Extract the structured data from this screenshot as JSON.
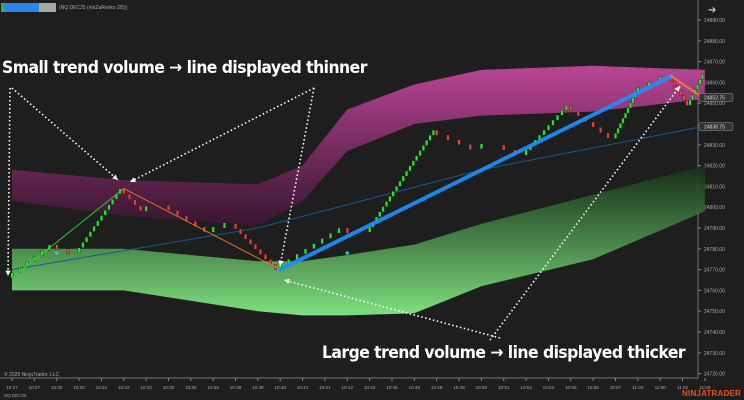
{
  "header": {
    "primary_button": "",
    "secondary_button": "",
    "title": "(NQ DEC25 (ninZaRenko 2/5))"
  },
  "annotations": {
    "top": "Small trend volume → line displayed thinner",
    "bottom": "Large trend volume → line displayed thicker"
  },
  "footer": {
    "copyright": "© 2025 NinjaTrader, LLC",
    "symbol": "NQ DEC25",
    "logo": "NINJATRADER"
  },
  "colors": {
    "up": "#2ee02e",
    "down": "#e8403a",
    "trend_thick": "#1e90ff",
    "trend_thin": "#f07a3a",
    "upper_band": "#c2479c",
    "lower_band": "#7ee07e",
    "ema": "#1c5a8a",
    "logo": "#e8541c"
  },
  "icons": {
    "nav": "arrow-right-icon"
  },
  "chart_data": {
    "type": "renko",
    "price_axis": {
      "ticks": [
        24890,
        24880,
        24870,
        24860,
        24850,
        24830,
        24820,
        24810,
        24800,
        24790,
        24780,
        24770,
        24760,
        24750,
        24740,
        24730,
        24720
      ],
      "tags": [
        "24852.75",
        "24838.75"
      ]
    },
    "time_axis": [
      "10:27",
      "10:27",
      "10:29",
      "10:30",
      "10:31",
      "10:32",
      "10:33",
      "10:35",
      "10:35",
      "10:36",
      "10:38",
      "10:39",
      "10:40",
      "10:41",
      "10:41",
      "10:42",
      "10:44",
      "10:45",
      "10:46",
      "10:48",
      "10:48",
      "10:50",
      "10:51",
      "10:53",
      "10:53",
      "10:55",
      "10:56",
      "10:57",
      "11:00",
      "11:00",
      "11:02",
      "11:05"
    ],
    "brick_size": 2.5,
    "price_path": [
      {
        "t": "10:27",
        "p": 24766
      },
      {
        "t": "10:29",
        "p": 24782
      },
      {
        "t": "10:30",
        "p": 24778
      },
      {
        "t": "10:32",
        "p": 24809
      },
      {
        "t": "10:33",
        "p": 24798
      },
      {
        "t": "10:35",
        "p": 24801
      },
      {
        "t": "10:36",
        "p": 24788
      },
      {
        "t": "10:38",
        "p": 24792
      },
      {
        "t": "10:40",
        "p": 24770
      },
      {
        "t": "10:42",
        "p": 24790
      },
      {
        "t": "10:44",
        "p": 24788
      },
      {
        "t": "10:48",
        "p": 24837
      },
      {
        "t": "10:50",
        "p": 24828
      },
      {
        "t": "10:51",
        "p": 24830
      },
      {
        "t": "10:53",
        "p": 24825
      },
      {
        "t": "10:55",
        "p": 24849
      },
      {
        "t": "10:57",
        "p": 24833
      },
      {
        "t": "11:00",
        "p": 24855
      },
      {
        "t": "11:01",
        "p": 24863
      },
      {
        "t": "11:03",
        "p": 24849
      },
      {
        "t": "11:05",
        "p": 24864
      }
    ],
    "bands": {
      "times": [
        "10:27",
        "10:32",
        "10:39",
        "10:41",
        "10:42",
        "10:46",
        "10:50",
        "10:56",
        "11:05"
      ],
      "upper_top": [
        24818,
        24813,
        24811,
        24820,
        24847,
        24859,
        24866,
        24868,
        24866
      ],
      "upper_bottom": [
        24803,
        24796,
        24791,
        24803,
        24827,
        24840,
        24844,
        24846,
        24852
      ],
      "lower_top": [
        24780,
        24780,
        24774,
        24774,
        24777,
        24782,
        24792,
        24806,
        24820
      ],
      "lower_bottom": [
        24760,
        24760,
        24750,
        24748,
        24748,
        24749,
        24762,
        24775,
        24798
      ]
    },
    "ema": [
      {
        "t": "10:27",
        "p": 24770
      },
      {
        "t": "10:39",
        "p": 24790
      },
      {
        "t": "10:50",
        "p": 24818
      },
      {
        "t": "11:05",
        "p": 24839
      }
    ],
    "trend_lines": [
      {
        "from": {
          "t": "10:27",
          "p": 24766
        },
        "to": {
          "t": "10:32",
          "p": 24809
        },
        "width": "thin",
        "color": "#2ee02e"
      },
      {
        "from": {
          "t": "10:32",
          "p": 24809
        },
        "to": {
          "t": "10:40",
          "p": 24770
        },
        "width": "thin",
        "color": "#f07a3a"
      },
      {
        "from": {
          "t": "10:40",
          "p": 24770
        },
        "to": {
          "t": "11:01",
          "p": 24863
        },
        "width": "thick",
        "color": "#1e90ff"
      },
      {
        "from": {
          "t": "11:01",
          "p": 24863
        },
        "to": {
          "t": "11:05",
          "p": 24852
        },
        "width": "medium",
        "color": "#f07a3a"
      }
    ],
    "markers": [
      {
        "t": "10:29",
        "p": 24778
      },
      {
        "t": "10:42",
        "p": 24778
      }
    ]
  }
}
